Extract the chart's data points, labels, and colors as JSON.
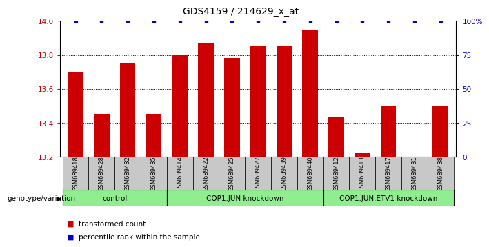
{
  "title": "GDS4159 / 214629_x_at",
  "samples": [
    "GSM689418",
    "GSM689428",
    "GSM689432",
    "GSM689435",
    "GSM689414",
    "GSM689422",
    "GSM689425",
    "GSM689427",
    "GSM689439",
    "GSM689440",
    "GSM689412",
    "GSM689413",
    "GSM689417",
    "GSM689431",
    "GSM689438"
  ],
  "red_values": [
    13.7,
    13.45,
    13.75,
    13.45,
    13.8,
    13.87,
    13.78,
    13.85,
    13.85,
    13.95,
    13.43,
    13.22,
    13.5,
    13.2,
    13.5
  ],
  "groups": [
    {
      "label": "control",
      "start": 0,
      "end": 4
    },
    {
      "label": "COP1.JUN knockdown",
      "start": 4,
      "end": 10
    },
    {
      "label": "COP1.JUN.ETV1 knockdown",
      "start": 10,
      "end": 15
    }
  ],
  "ylim_left": [
    13.2,
    14.0
  ],
  "ylim_right": [
    0,
    100
  ],
  "yticks_left": [
    13.2,
    13.4,
    13.6,
    13.8,
    14.0
  ],
  "yticks_right": [
    0,
    25,
    50,
    75,
    100
  ],
  "ytick_labels_right": [
    "0",
    "25",
    "50",
    "75",
    "100%"
  ],
  "grid_values": [
    13.4,
    13.6,
    13.8
  ],
  "red_color": "#cc0000",
  "blue_color": "#0000cc",
  "bar_bg": "#c8c8c8",
  "group_bg": "#90ee90",
  "legend_red": "transformed count",
  "legend_blue": "percentile rank within the sample",
  "genotype_label": "genotype/variation"
}
